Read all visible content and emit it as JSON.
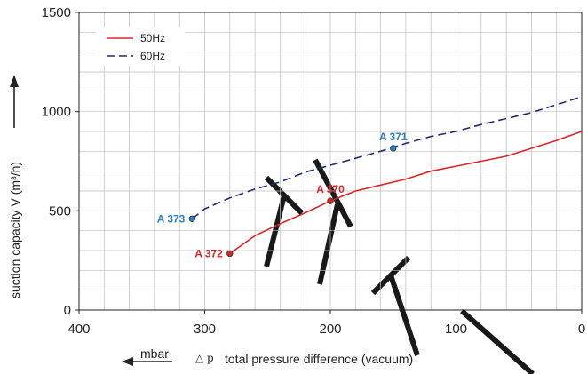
{
  "chart_data": {
    "type": "line",
    "xlabel_prefix": "△ p",
    "xlabel": "total pressure difference (vacuum)",
    "ylabel": "suction capacity V (m³/h)",
    "unit_label": "mbar",
    "xlim": [
      400,
      0
    ],
    "ylim": [
      0,
      1500
    ],
    "x_ticks": [
      400,
      300,
      200,
      100,
      0
    ],
    "y_ticks": [
      0,
      500,
      1000,
      1500
    ],
    "grid": true,
    "legend_position": "top-left",
    "series": [
      {
        "name": "50Hz",
        "color": "#d9262b",
        "dash": "solid",
        "points": [
          [
            280,
            285
          ],
          [
            260,
            375
          ],
          [
            240,
            435
          ],
          [
            220,
            490
          ],
          [
            200,
            550
          ],
          [
            180,
            600
          ],
          [
            160,
            630
          ],
          [
            140,
            660
          ],
          [
            120,
            700
          ],
          [
            100,
            725
          ],
          [
            80,
            750
          ],
          [
            60,
            775
          ],
          [
            40,
            815
          ],
          [
            20,
            855
          ],
          [
            0,
            900
          ]
        ]
      },
      {
        "name": "60Hz",
        "color": "#1f2d6e",
        "dash": "dashed",
        "points": [
          [
            310,
            460
          ],
          [
            300,
            510
          ],
          [
            280,
            565
          ],
          [
            260,
            610
          ],
          [
            240,
            645
          ],
          [
            220,
            695
          ],
          [
            200,
            730
          ],
          [
            180,
            765
          ],
          [
            160,
            800
          ],
          [
            140,
            840
          ],
          [
            120,
            875
          ],
          [
            100,
            900
          ],
          [
            80,
            935
          ],
          [
            60,
            965
          ],
          [
            40,
            995
          ],
          [
            20,
            1035
          ],
          [
            0,
            1075
          ]
        ]
      }
    ],
    "annotations": [
      {
        "label": "A 372",
        "x": 280,
        "y": 285,
        "color": "#d9262b",
        "side": "left"
      },
      {
        "label": "A 370",
        "x": 200,
        "y": 550,
        "color": "#d9262b",
        "side": "above"
      },
      {
        "label": "A 373",
        "x": 310,
        "y": 460,
        "color": "#2a7fc1",
        "side": "left"
      },
      {
        "label": "A 371",
        "x": 150,
        "y": 815,
        "color": "#2a7fc1",
        "side": "above"
      }
    ]
  }
}
